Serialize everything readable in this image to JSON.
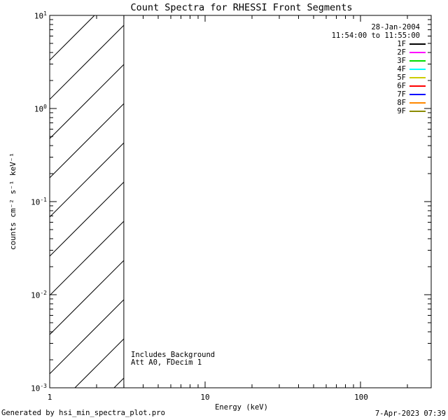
{
  "title": "Count Spectra for RHESSI Front Segments",
  "legend": {
    "date": "28-Jan-2004",
    "time_range": "11:54:00 to 11:55:00",
    "entries": [
      {
        "label": "1F",
        "color": "#000000"
      },
      {
        "label": "2F",
        "color": "#ff00ff"
      },
      {
        "label": "3F",
        "color": "#00dd00"
      },
      {
        "label": "4F",
        "color": "#00ffff"
      },
      {
        "label": "5F",
        "color": "#cccc00"
      },
      {
        "label": "6F",
        "color": "#ff0000"
      },
      {
        "label": "7F",
        "color": "#0000ff"
      },
      {
        "label": "8F",
        "color": "#ff8800"
      },
      {
        "label": "9F",
        "color": "#8b8b00"
      }
    ]
  },
  "axes": {
    "x_label": "Energy (keV)",
    "y_label": "counts cm⁻² s⁻¹ keV⁻¹",
    "x_tick_labels": [
      "1",
      "10",
      "100"
    ],
    "y_tick_labels": [
      {
        "base": "10",
        "exp": "1"
      },
      {
        "base": "10",
        "exp": "0"
      },
      {
        "base": "10",
        "exp": "-1"
      },
      {
        "base": "10",
        "exp": "-2"
      },
      {
        "base": "10",
        "exp": "-3"
      }
    ]
  },
  "annotations": {
    "background_note": "Includes_Background",
    "attenuator_note": "Att A0, FDecim 1"
  },
  "footer": {
    "generated_by": "Generated by hsi_min_spectra_plot.pro",
    "timestamp": "7-Apr-2023 07:39"
  },
  "chart_data": {
    "type": "line",
    "title": "Count Spectra for RHESSI Front Segments",
    "xlabel": "Energy (keV)",
    "ylabel": "counts cm^-2 s^-1 keV^-1",
    "x_scale": "log",
    "y_scale": "log",
    "xlim": [
      1,
      285
    ],
    "ylim": [
      0.001,
      10
    ],
    "x_major_ticks": [
      1,
      10,
      100
    ],
    "y_major_ticks": [
      0.001,
      0.01,
      0.1,
      1,
      10
    ],
    "grid": false,
    "legend_position": "top-right",
    "hatched_region": {
      "x_start": 1,
      "x_end": 3,
      "style": "diagonal-hatch"
    },
    "series": [
      {
        "name": "1F",
        "color": "#000000",
        "values": []
      },
      {
        "name": "2F",
        "color": "#ff00ff",
        "values": []
      },
      {
        "name": "3F",
        "color": "#00dd00",
        "values": []
      },
      {
        "name": "4F",
        "color": "#00ffff",
        "values": []
      },
      {
        "name": "5F",
        "color": "#cccc00",
        "values": []
      },
      {
        "name": "6F",
        "color": "#ff0000",
        "values": []
      },
      {
        "name": "7F",
        "color": "#0000ff",
        "values": []
      },
      {
        "name": "8F",
        "color": "#ff8800",
        "values": []
      },
      {
        "name": "9F",
        "color": "#8b8b00",
        "values": []
      }
    ]
  }
}
